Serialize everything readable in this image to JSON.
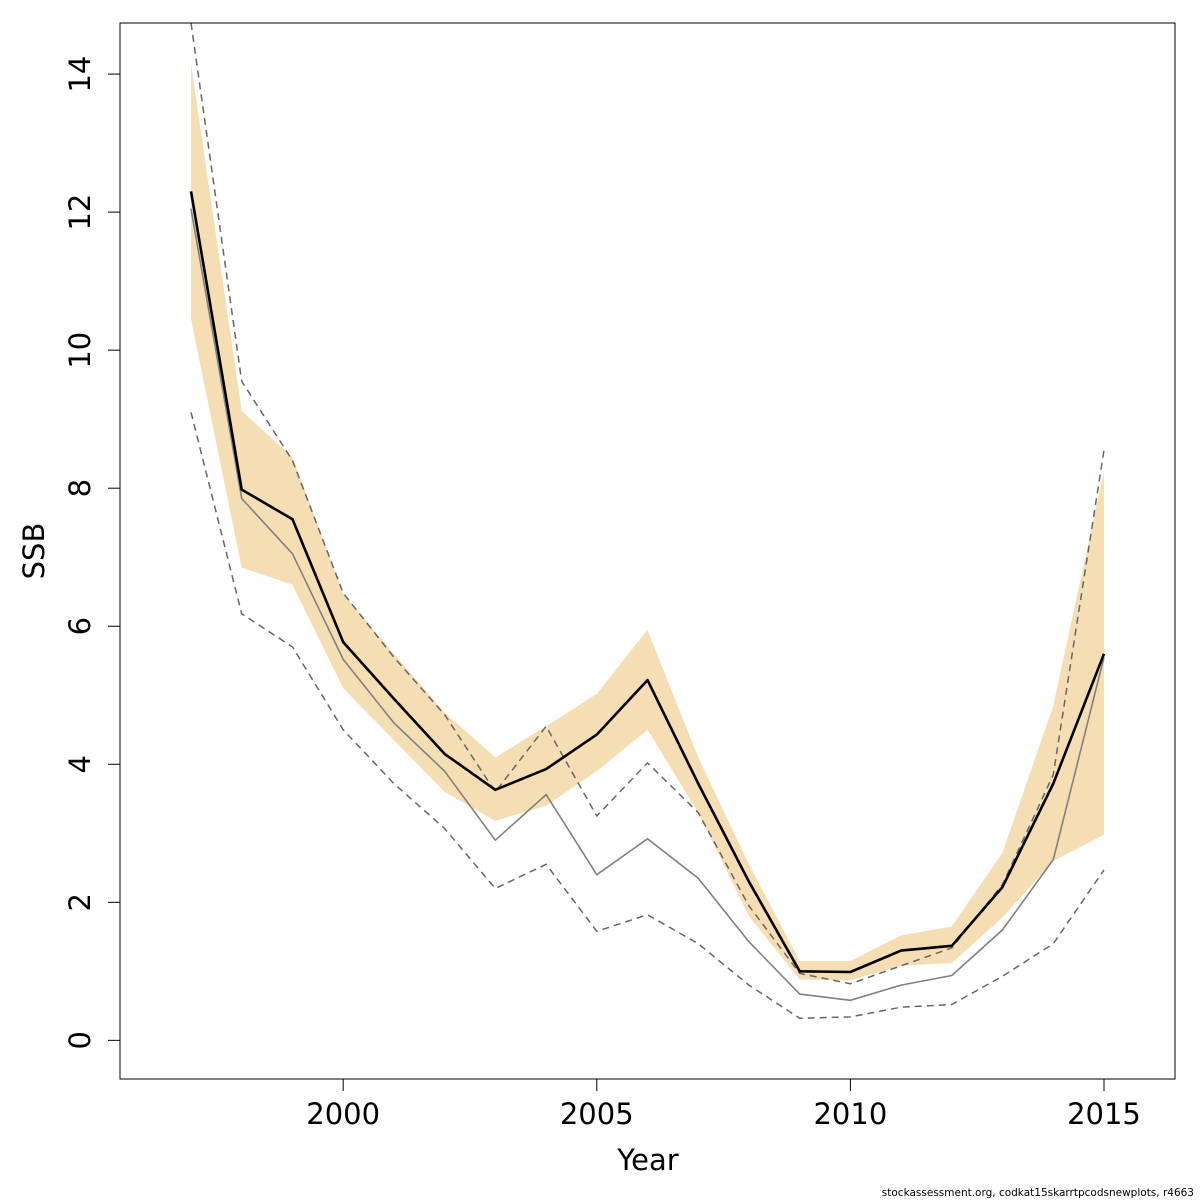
{
  "chart_data": {
    "type": "line",
    "title": "",
    "xlabel": "Year",
    "ylabel": "SSB",
    "xlim": [
      1995.6,
      2016.4
    ],
    "ylim": [
      -0.56,
      14.74
    ],
    "x_ticks": [
      2000,
      2005,
      2010,
      2015
    ],
    "y_ticks": [
      0,
      2,
      4,
      6,
      8,
      10,
      12,
      14
    ],
    "grid": false,
    "legend": "none",
    "x": [
      1997,
      1998,
      1999,
      2000,
      2001,
      2002,
      2003,
      2004,
      2005,
      2006,
      2007,
      2008,
      2009,
      2010,
      2011,
      2012,
      2013,
      2014,
      2015
    ],
    "band": {
      "color": "#f5deb3",
      "lower": [
        10.45,
        6.85,
        6.6,
        5.1,
        4.35,
        3.6,
        3.18,
        3.4,
        3.9,
        4.5,
        3.3,
        1.8,
        0.88,
        0.87,
        1.08,
        1.12,
        1.78,
        2.6,
        2.98
      ],
      "upper": [
        14.15,
        9.12,
        8.45,
        6.48,
        5.6,
        4.75,
        4.1,
        4.55,
        5.02,
        5.95,
        4.1,
        2.55,
        1.15,
        1.15,
        1.52,
        1.65,
        2.72,
        4.85,
        8.25
      ]
    },
    "series": [
      {
        "style": "solid-bold",
        "color": "#000000",
        "values": [
          12.3,
          7.98,
          7.55,
          5.77,
          4.95,
          4.15,
          3.63,
          3.93,
          4.43,
          5.22,
          3.72,
          2.3,
          1.0,
          0.99,
          1.3,
          1.37,
          2.22,
          3.72,
          5.6
        ]
      },
      {
        "style": "solid-thin",
        "color": "#808080",
        "values": [
          12.05,
          7.85,
          7.05,
          5.52,
          4.6,
          3.9,
          2.9,
          3.56,
          2.4,
          2.92,
          2.35,
          1.43,
          0.67,
          0.58,
          0.8,
          0.94,
          1.6,
          2.62,
          5.55
        ]
      },
      {
        "style": "dashed",
        "color": "#666666",
        "values": [
          14.74,
          9.55,
          8.4,
          6.48,
          5.55,
          4.72,
          3.6,
          4.55,
          3.25,
          4.02,
          3.3,
          1.95,
          0.97,
          0.82,
          1.08,
          1.34,
          2.26,
          3.85,
          8.55
        ]
      },
      {
        "style": "dashed",
        "color": "#666666",
        "values": [
          9.1,
          6.18,
          5.7,
          4.5,
          3.72,
          3.07,
          2.2,
          2.55,
          1.58,
          1.82,
          1.4,
          0.8,
          0.32,
          0.34,
          0.48,
          0.52,
          0.93,
          1.4,
          2.47
        ]
      }
    ]
  },
  "footer": {
    "note": "stockassessment.org, codkat15skarrtpcodsnewplots, r4663"
  }
}
